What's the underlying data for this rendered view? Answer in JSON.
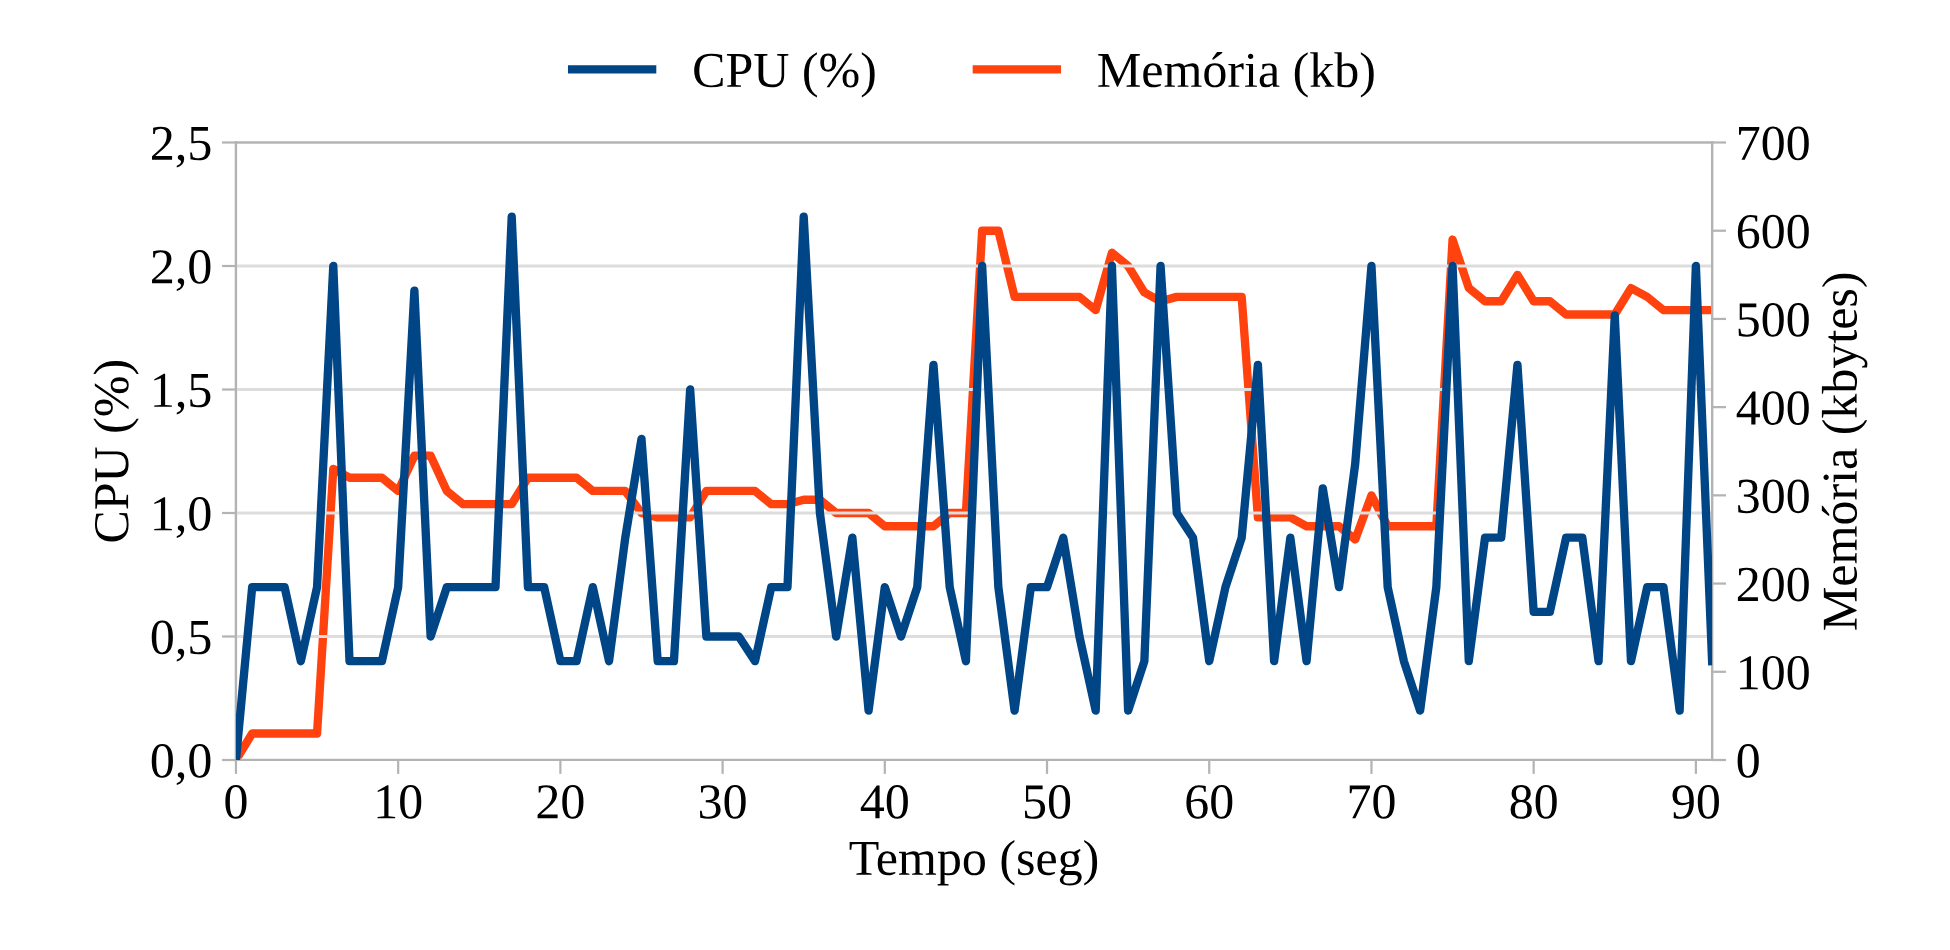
{
  "chart_data": {
    "type": "line",
    "xlabel": "Tempo (seg)",
    "ylabel": "CPU (%)",
    "y2label": "Memória (kbytes)",
    "x": [
      0,
      1,
      2,
      3,
      4,
      5,
      6,
      7,
      8,
      9,
      10,
      11,
      12,
      13,
      14,
      15,
      16,
      17,
      18,
      19,
      20,
      21,
      22,
      23,
      24,
      25,
      26,
      27,
      28,
      29,
      30,
      31,
      32,
      33,
      34,
      35,
      36,
      37,
      38,
      39,
      40,
      41,
      42,
      43,
      44,
      45,
      46,
      47,
      48,
      49,
      50,
      51,
      52,
      53,
      54,
      55,
      56,
      57,
      58,
      59,
      60,
      61,
      62,
      63,
      64,
      65,
      66,
      67,
      68,
      69,
      70,
      71,
      72,
      73,
      74,
      75,
      76,
      77,
      78,
      79,
      80,
      81,
      82,
      83,
      84,
      85,
      86,
      87,
      88,
      89,
      90,
      91
    ],
    "series": [
      {
        "name": "CPU (%)",
        "color": "#004586",
        "values": [
          0,
          0.7,
          0.7,
          0.7,
          0.4,
          0.7,
          2.0,
          0.4,
          0.4,
          0.4,
          0.7,
          1.9,
          0.5,
          0.7,
          0.7,
          0.7,
          0.7,
          2.2,
          0.7,
          0.7,
          0.4,
          0.4,
          0.7,
          0.4,
          0.9,
          1.3,
          0.4,
          0.4,
          1.5,
          0.5,
          0.5,
          0.5,
          0.4,
          0.7,
          0.7,
          2.2,
          1.0,
          0.5,
          0.9,
          0.2,
          0.7,
          0.5,
          0.7,
          1.6,
          0.7,
          0.4,
          2.0,
          0.7,
          0.2,
          0.7,
          0.7,
          0.9,
          0.5,
          0.2,
          2.0,
          0.2,
          0.4,
          2.0,
          1.0,
          0.9,
          0.4,
          0.7,
          0.9,
          1.6,
          0.4,
          0.9,
          0.4,
          1.1,
          0.7,
          1.2,
          2.0,
          0.7,
          0.4,
          0.2,
          0.7,
          2.0,
          0.4,
          0.9,
          0.9,
          1.6,
          0.6,
          0.6,
          0.9,
          0.9,
          0.4,
          1.8,
          0.4,
          0.7,
          0.7,
          0.2,
          2.0,
          0.4
        ]
      },
      {
        "name": "Memória (kb)",
        "color": "#ff420e",
        "axis": "y2",
        "values": [
          0,
          30,
          30,
          30,
          30,
          30,
          330,
          320,
          320,
          320,
          305,
          345,
          345,
          305,
          290,
          290,
          290,
          290,
          320,
          320,
          320,
          320,
          305,
          305,
          305,
          280,
          275,
          275,
          275,
          305,
          305,
          305,
          305,
          290,
          290,
          295,
          295,
          280,
          280,
          280,
          265,
          265,
          265,
          265,
          280,
          280,
          600,
          600,
          525,
          525,
          525,
          525,
          525,
          510,
          575,
          560,
          530,
          520,
          525,
          525,
          525,
          525,
          525,
          275,
          275,
          275,
          265,
          265,
          265,
          250,
          300,
          265,
          265,
          265,
          265,
          590,
          535,
          520,
          520,
          550,
          520,
          520,
          505,
          505,
          505,
          505,
          535,
          525,
          510,
          510,
          510,
          510
        ]
      }
    ],
    "xlim": [
      0,
      91
    ],
    "xticks": [
      0,
      10,
      20,
      30,
      40,
      50,
      60,
      70,
      80,
      90
    ],
    "ylim": [
      0,
      2.5
    ],
    "yticks": [
      {
        "value": 0,
        "label": "0,0"
      },
      {
        "value": 0.5,
        "label": "0,5"
      },
      {
        "value": 1.0,
        "label": "1,0"
      },
      {
        "value": 1.5,
        "label": "1,5"
      },
      {
        "value": 2.0,
        "label": "2,0"
      },
      {
        "value": 2.5,
        "label": "2,5"
      }
    ],
    "y2lim": [
      0,
      700
    ],
    "y2ticks": [
      0,
      100,
      200,
      300,
      400,
      500,
      600,
      700
    ],
    "grid": "y",
    "legend": "top",
    "marker": "none",
    "line_style": "solid"
  }
}
